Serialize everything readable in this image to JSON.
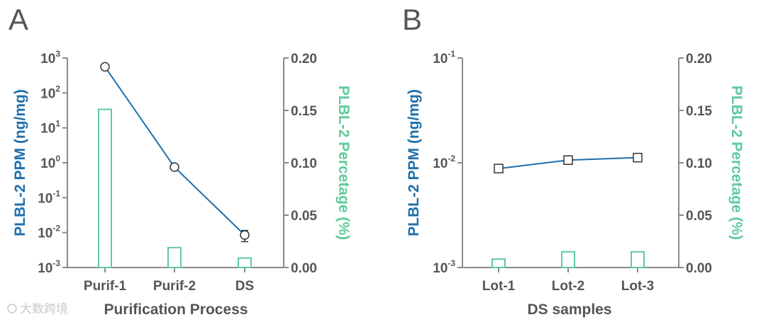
{
  "watermark": "大数跨境",
  "colors": {
    "line": "#1f6fab",
    "bar": "#5fcb9c",
    "axis": "#8a8a8a",
    "text": "#555555"
  },
  "chart_data": [
    {
      "panel": "A",
      "type": "bar+line",
      "xlabel": "Purification Process",
      "ylabel_left": "PLBL-2 PPM (ng/mg)",
      "ylabel_right": "PLBL-2 Percetage (%)",
      "categories": [
        "Purif-1",
        "Purif-2",
        "DS"
      ],
      "left_axis": {
        "scale": "log",
        "ticks": [
          {
            "base": "10",
            "exp": "3",
            "value": 1000
          },
          {
            "base": "10",
            "exp": "2",
            "value": 100
          },
          {
            "base": "10",
            "exp": "1",
            "value": 10
          },
          {
            "base": "10",
            "exp": "0",
            "value": 1
          },
          {
            "base": "10",
            "exp": "-1",
            "value": 0.1
          },
          {
            "base": "10",
            "exp": "-2",
            "value": 0.01
          },
          {
            "base": "10",
            "exp": "-3",
            "value": 0.001
          }
        ],
        "ylim": [
          0.001,
          1000
        ]
      },
      "right_axis": {
        "scale": "linear",
        "ticks": [
          "0.20",
          "0.15",
          "0.10",
          "0.05",
          "0.00"
        ],
        "ylim": [
          0,
          0.2
        ]
      },
      "line_series": {
        "name": "PLBL-2 PPM",
        "marker": "circle",
        "values": [
          560,
          0.75,
          0.0085
        ],
        "errors": [
          0,
          0,
          0.003
        ]
      },
      "bar_series": {
        "name": "PLBL-2 Percetage",
        "values": [
          0.151,
          0.019,
          0.009
        ]
      }
    },
    {
      "panel": "B",
      "type": "bar+line",
      "xlabel": "DS samples",
      "ylabel_left": "PLBL-2 PPM (ng/mg)",
      "ylabel_right": "PLBL-2 Percetage (%)",
      "categories": [
        "Lot-1",
        "Lot-2",
        "Lot-3"
      ],
      "left_axis": {
        "scale": "log",
        "ticks": [
          {
            "base": "10",
            "exp": "-1",
            "value": 0.1
          },
          {
            "base": "10",
            "exp": "-2",
            "value": 0.01
          },
          {
            "base": "10",
            "exp": "-3",
            "value": 0.001
          }
        ],
        "ylim": [
          0.001,
          0.1
        ]
      },
      "right_axis": {
        "scale": "linear",
        "ticks": [
          "0.20",
          "0.15",
          "0.10",
          "0.05",
          "0.00"
        ],
        "ylim": [
          0,
          0.2
        ]
      },
      "line_series": {
        "name": "PLBL-2 PPM",
        "marker": "square",
        "values": [
          0.0088,
          0.0106,
          0.0112
        ],
        "errors": [
          0,
          0,
          0.0008
        ]
      },
      "bar_series": {
        "name": "PLBL-2 Percetage",
        "values": [
          0.008,
          0.015,
          0.015
        ]
      }
    }
  ]
}
